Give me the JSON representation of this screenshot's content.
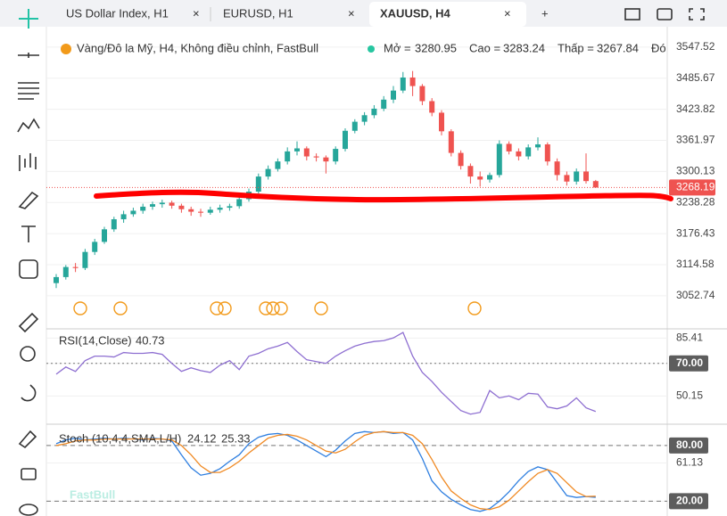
{
  "tabs": [
    "US Dollar Index, H1",
    "EURUSD, H1",
    "XAUUSD, H4"
  ],
  "watermark": "FastBull",
  "chart_data": [
    {
      "type": "candlestick",
      "title": "Vàng/Đô la Mỹ, H4, Không điều chỉnh, FastBull",
      "open_label": "Mở =",
      "high_label": "Cao =",
      "low_label": "Thấp =",
      "close_label": "Đó",
      "up_color": "#26a69a",
      "down_color": "#ef5350",
      "ylim": [
        2987,
        3588
      ],
      "yticks": [
        3547.52,
        3485.67,
        3423.82,
        3361.97,
        3300.13,
        3238.28,
        3176.43,
        3114.58,
        3052.74
      ],
      "candles": [
        [
          3078,
          3096,
          3068,
          3090
        ],
        [
          3090,
          3114,
          3085,
          3110
        ],
        [
          3110,
          3118,
          3100,
          3108
        ],
        [
          3108,
          3146,
          3104,
          3140
        ],
        [
          3140,
          3166,
          3134,
          3160
        ],
        [
          3160,
          3190,
          3156,
          3185
        ],
        [
          3185,
          3210,
          3180,
          3205
        ],
        [
          3205,
          3222,
          3198,
          3215
        ],
        [
          3215,
          3228,
          3210,
          3222
        ],
        [
          3222,
          3236,
          3216,
          3230
        ],
        [
          3230,
          3240,
          3224,
          3235
        ],
        [
          3235,
          3244,
          3228,
          3238
        ],
        [
          3238,
          3242,
          3226,
          3232
        ],
        [
          3232,
          3236,
          3218,
          3225
        ],
        [
          3225,
          3230,
          3212,
          3220
        ],
        [
          3220,
          3226,
          3210,
          3218
        ],
        [
          3218,
          3230,
          3214,
          3224
        ],
        [
          3224,
          3234,
          3218,
          3228
        ],
        [
          3228,
          3236,
          3222,
          3231
        ],
        [
          3231,
          3250,
          3226,
          3245
        ],
        [
          3245,
          3266,
          3240,
          3260
        ],
        [
          3260,
          3296,
          3256,
          3290
        ],
        [
          3290,
          3312,
          3284,
          3305
        ],
        [
          3305,
          3326,
          3300,
          3320
        ],
        [
          3320,
          3348,
          3314,
          3340
        ],
        [
          3340,
          3360,
          3332,
          3346
        ],
        [
          3346,
          3350,
          3322,
          3330
        ],
        [
          3330,
          3336,
          3320,
          3328
        ],
        [
          3328,
          3332,
          3296,
          3320
        ],
        [
          3320,
          3350,
          3314,
          3345
        ],
        [
          3345,
          3386,
          3340,
          3381
        ],
        [
          3381,
          3404,
          3376,
          3399
        ],
        [
          3399,
          3418,
          3392,
          3412
        ],
        [
          3412,
          3432,
          3406,
          3425
        ],
        [
          3425,
          3450,
          3420,
          3443
        ],
        [
          3443,
          3470,
          3436,
          3461
        ],
        [
          3461,
          3498,
          3456,
          3487
        ],
        [
          3487,
          3500,
          3450,
          3470
        ],
        [
          3470,
          3474,
          3432,
          3440
        ],
        [
          3440,
          3446,
          3410,
          3417
        ],
        [
          3417,
          3422,
          3372,
          3380
        ],
        [
          3380,
          3384,
          3330,
          3337
        ],
        [
          3337,
          3342,
          3304,
          3311
        ],
        [
          3311,
          3316,
          3276,
          3290
        ],
        [
          3290,
          3300,
          3270,
          3284
        ],
        [
          3284,
          3298,
          3278,
          3293
        ],
        [
          3293,
          3362,
          3288,
          3355
        ],
        [
          3355,
          3360,
          3334,
          3340
        ],
        [
          3340,
          3346,
          3322,
          3330
        ],
        [
          3330,
          3354,
          3324,
          3348
        ],
        [
          3348,
          3368,
          3342,
          3354
        ],
        [
          3354,
          3358,
          3312,
          3320
        ],
        [
          3320,
          3326,
          3282,
          3293
        ],
        [
          3293,
          3300,
          3272,
          3280
        ],
        [
          3280,
          3306,
          3274,
          3300
        ],
        [
          3300,
          3336,
          3276,
          3280.95
        ],
        [
          3280.95,
          3283.24,
          3267.84,
          3268.19
        ]
      ]
    },
    {
      "type": "line",
      "title": "RSI(14,Close)",
      "ylim": [
        33,
        91
      ],
      "yticks": [
        85.41,
        {
          "value": 70,
          "label": "70.00"
        },
        50.15
      ],
      "levels": [
        70
      ],
      "series": [
        {
          "color": "#8e6fd1",
          "values": [
            63.4,
            67.8,
            65.1,
            71.7,
            74.4,
            74.4,
            73.9,
            76.6,
            76.1,
            76.1,
            76.6,
            75.5,
            70.0,
            65.1,
            67.3,
            65.6,
            64.5,
            68.9,
            71.7,
            66.2,
            74.4,
            76.1,
            78.9,
            80.5,
            82.7,
            77.2,
            72.2,
            71.1,
            70.0,
            74.4,
            77.7,
            80.5,
            82.2,
            83.3,
            83.8,
            85.5,
            88.8,
            74.4,
            64.5,
            59.0,
            52.4,
            46.8,
            41.3,
            39.1,
            40.2,
            53.5,
            49.0,
            50.2,
            47.9,
            51.8,
            51.3,
            43.5,
            42.4,
            44.1,
            49.0,
            43.0,
            40.73
          ]
        }
      ]
    },
    {
      "type": "line",
      "title": "Stoch (10,4,4,SMA,L/H)",
      "ylim": [
        4,
        103
      ],
      "yticks": [
        {
          "value": 80,
          "label": "80.00"
        },
        61.13,
        {
          "value": 20,
          "label": "20.00"
        }
      ],
      "levels": [
        80,
        20
      ],
      "series": [
        {
          "color": "#2f7fe0",
          "values": [
            82,
            86,
            88,
            86,
            87,
            88,
            87,
            88,
            87,
            86,
            88,
            87,
            85,
            70,
            56,
            48,
            50,
            55,
            63,
            70,
            82,
            89,
            92,
            93,
            91,
            86,
            80,
            74,
            68,
            75,
            85,
            93,
            95,
            94,
            95,
            93,
            94,
            86,
            66,
            42,
            30,
            22,
            16,
            11,
            9,
            12,
            20,
            30,
            42,
            52,
            57,
            54,
            40,
            26,
            24,
            25,
            24.12
          ]
        },
        {
          "color": "#f08a24",
          "values": [
            80,
            82,
            85,
            86,
            86,
            87,
            87,
            87,
            87,
            87,
            87,
            87,
            86,
            80,
            70,
            58,
            51,
            51,
            56,
            63,
            72,
            80,
            88,
            91,
            92,
            90,
            86,
            80,
            74,
            72,
            76,
            84,
            91,
            94,
            95,
            94,
            94,
            91,
            82,
            65,
            46,
            31,
            23,
            16,
            12,
            11,
            14,
            21,
            31,
            41,
            50,
            54,
            50,
            40,
            30,
            25,
            25.33
          ]
        }
      ]
    }
  ]
}
